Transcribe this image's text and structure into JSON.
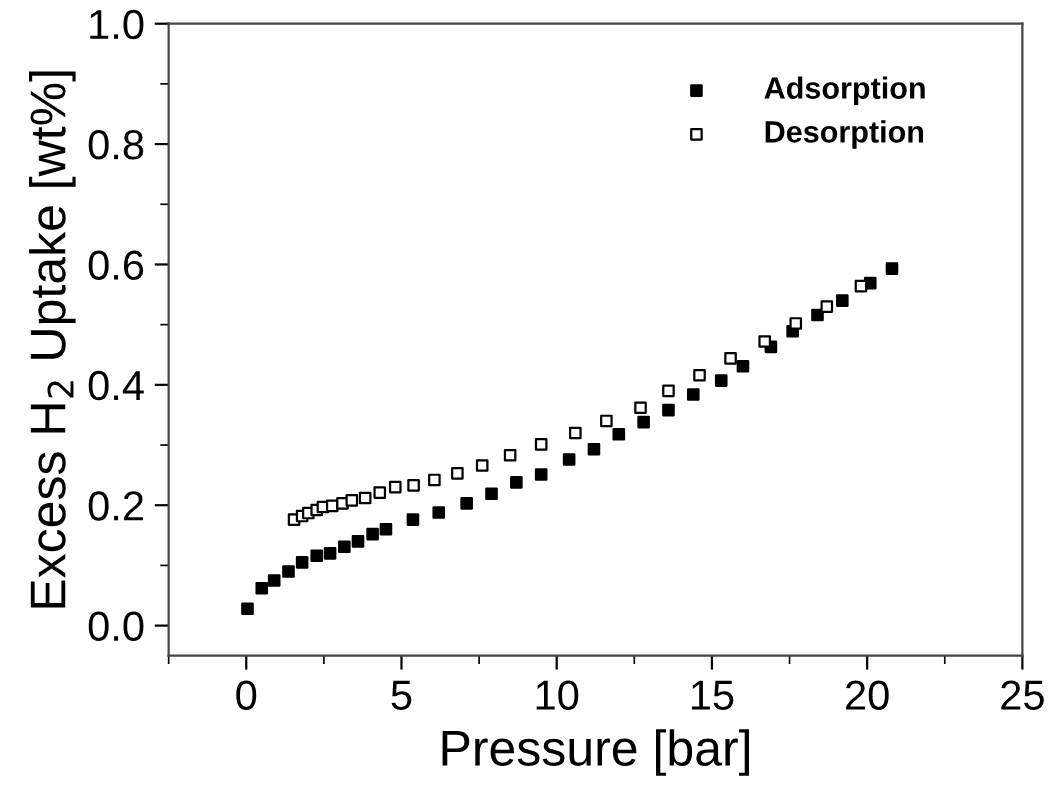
{
  "chart_data": {
    "type": "scatter",
    "xlabel": "Pressure [bar]",
    "ylabel": "Excess H$_{2}$ Uptake [wt%]",
    "xlim": [
      -2.5,
      25
    ],
    "xticks": [
      0,
      5,
      10,
      15,
      20,
      25
    ],
    "ylim": [
      -0.05,
      1.0
    ],
    "yticks": [
      {
        "value": 0,
        "label": "0.0"
      },
      0.2,
      0.4,
      0.6,
      0.8,
      {
        "value": 1,
        "label": "1.0"
      }
    ],
    "marker": "square",
    "legend": "top right",
    "grid": false,
    "series": [
      {
        "name": "Adsorption",
        "color": "#000000",
        "x": [
          0.04,
          0.5,
          0.9,
          1.36,
          1.8,
          2.27,
          2.7,
          3.16,
          3.6,
          4.07,
          4.5,
          5.37,
          6.2,
          7.1,
          7.9,
          8.7,
          9.5,
          10.4,
          11.2,
          12.0,
          12.8,
          13.6,
          14.4,
          15.3,
          16.0,
          16.9,
          17.6,
          18.4,
          19.2,
          20.1,
          20.8
        ],
        "values": [
          0.028,
          0.062,
          0.075,
          0.09,
          0.105,
          0.116,
          0.12,
          0.131,
          0.14,
          0.152,
          0.16,
          0.176,
          0.188,
          0.203,
          0.219,
          0.238,
          0.251,
          0.276,
          0.293,
          0.318,
          0.338,
          0.358,
          0.384,
          0.407,
          0.431,
          0.463,
          0.489,
          0.516,
          0.54,
          0.569,
          0.593
        ]
      },
      {
        "name": "Desorption",
        "color": "#ffffff",
        "x": [
          1.54,
          1.8,
          2.0,
          2.27,
          2.47,
          2.77,
          3.1,
          3.4,
          3.83,
          4.3,
          4.8,
          5.39,
          6.06,
          6.8,
          7.6,
          8.5,
          9.5,
          10.6,
          11.6,
          12.7,
          13.6,
          14.6,
          15.6,
          16.7,
          17.7,
          18.7,
          19.8
        ],
        "values": [
          0.176,
          0.182,
          0.187,
          0.192,
          0.197,
          0.199,
          0.203,
          0.208,
          0.212,
          0.221,
          0.23,
          0.233,
          0.242,
          0.253,
          0.266,
          0.283,
          0.301,
          0.32,
          0.34,
          0.362,
          0.39,
          0.416,
          0.444,
          0.472,
          0.502,
          0.53,
          0.564
        ]
      }
    ]
  }
}
